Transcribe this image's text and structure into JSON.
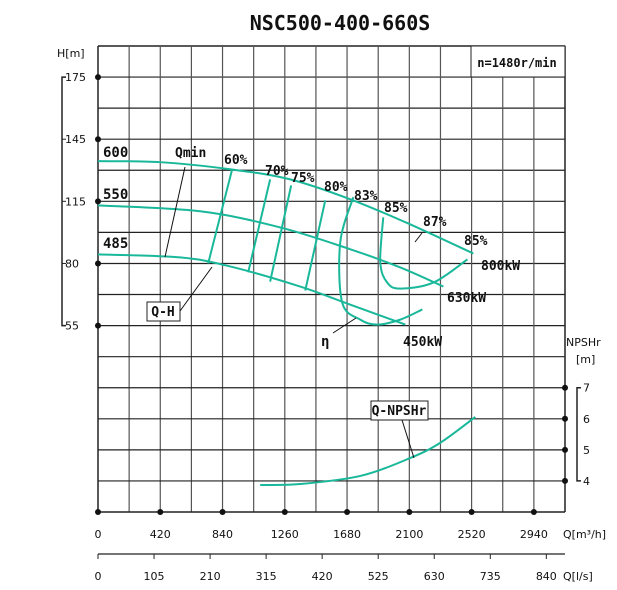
{
  "chart_data": {
    "type": "line",
    "title": "NSC500-400-660S",
    "speed_note": "n=1480r/min",
    "curve_color": "#1ab89a",
    "grid": true,
    "x_axis": {
      "label": "Q[m³/h]",
      "ticks": [
        "0",
        "420",
        "840",
        "1260",
        "1680",
        "2100",
        "2520",
        "2940"
      ],
      "range": [
        0,
        3150
      ]
    },
    "x2_axis": {
      "label": "Q[l/s]",
      "ticks": [
        "0",
        "105",
        "210",
        "315",
        "420",
        "525",
        "630",
        "735",
        "840"
      ]
    },
    "y_axis": {
      "label": "H[m]",
      "ticks": [
        "175",
        "145",
        "115",
        "80",
        "55"
      ]
    },
    "y2_axis": {
      "label_line1": "NPSHr",
      "label_line2": "[m]",
      "ticks": [
        "7",
        "6",
        "5",
        "4"
      ]
    },
    "series": [
      {
        "name": "600",
        "x": [
          0,
          419,
          891,
          1296,
          1702,
          2107,
          2532
        ],
        "y": [
          134.4,
          133.9,
          130.5,
          125.6,
          116,
          102,
          85.6
        ]
      },
      {
        "name": "550",
        "x": [
          0,
          689,
          1229,
          1702,
          2039,
          2330
        ],
        "y": [
          112.7,
          109.4,
          100.3,
          88,
          78.4,
          70.7
        ]
      },
      {
        "name": "485",
        "x": [
          0,
          554,
          891,
          1364,
          1702,
          2073
        ],
        "y": [
          85.1,
          83.4,
          78.8,
          70.7,
          63.4,
          55.4
        ]
      }
    ],
    "efficiency_lines": [
      {
        "name": "60%",
        "x": [
          905,
          743
        ],
        "y": [
          130.5,
          80
        ]
      },
      {
        "name": "70%",
        "x": [
          1161,
          1013
        ],
        "y": [
          125.6,
          76.4
        ]
      },
      {
        "name": "75%",
        "x": [
          1303,
          1161
        ],
        "y": [
          122.7,
          72.7
        ]
      },
      {
        "name": "80%",
        "x": [
          1533,
          1398
        ],
        "y": [
          115.5,
          69.1
        ]
      },
      {
        "name": "83%",
        "x": [
          1722,
          1634,
          1647,
          1769,
          1884,
          2039,
          2188
        ],
        "y": [
          117,
          91.9,
          64.3,
          57.4,
          55.4,
          57.4,
          61.5
        ]
      },
      {
        "name": "85%",
        "x": [
          1924,
          1904,
          1951,
          2039,
          2262,
          2492
        ],
        "y": [
          106,
          80.6,
          72.3,
          69.9,
          72.3,
          82.3
        ]
      }
    ],
    "npshr": {
      "name": "Q-NPSHr",
      "x": [
        1094,
        1364,
        1769,
        2107,
        2309,
        2545
      ],
      "y": [
        3.87,
        3.9,
        4.16,
        4.74,
        5.23,
        6.06
      ]
    },
    "annotations": {
      "qmin": "Qmin",
      "qh": "Q-H",
      "eta": "η",
      "eff_87": "87%",
      "eff_85_right": "85%",
      "p800": "800kW",
      "p630": "630kW",
      "p450": "450kW"
    }
  }
}
